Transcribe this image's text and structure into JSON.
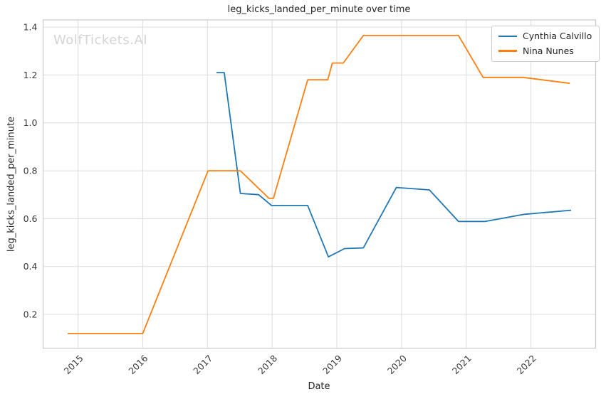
{
  "watermark": "WolfTickets.AI",
  "chart_data": {
    "type": "line",
    "title": "leg_kicks_landed_per_minute over time",
    "xlabel": "Date",
    "ylabel": "leg_kicks_landed_per_minute",
    "xlim": [
      2014.46,
      2023.0
    ],
    "ylim": [
      0.059,
      1.43
    ],
    "x_ticks": [
      2015,
      2016,
      2017,
      2018,
      2019,
      2020,
      2021,
      2022
    ],
    "y_ticks": [
      0.2,
      0.4,
      0.6,
      0.8,
      1.0,
      1.2,
      1.4
    ],
    "grid": true,
    "grid_color": "#dcdcdc",
    "spine_color": "#c9c9c9",
    "legend_position": "upper right",
    "series": [
      {
        "name": "Cynthia Calvillo",
        "color": "#1f77b4",
        "points": [
          [
            2017.14,
            1.21
          ],
          [
            2017.26,
            1.21
          ],
          [
            2017.51,
            0.705
          ],
          [
            2017.79,
            0.7
          ],
          [
            2017.99,
            0.655
          ],
          [
            2018.55,
            0.655
          ],
          [
            2018.87,
            0.44
          ],
          [
            2019.12,
            0.475
          ],
          [
            2019.41,
            0.478
          ],
          [
            2019.92,
            0.73
          ],
          [
            2020.43,
            0.72
          ],
          [
            2020.88,
            0.588
          ],
          [
            2021.29,
            0.588
          ],
          [
            2021.9,
            0.618
          ],
          [
            2022.62,
            0.635
          ]
        ]
      },
      {
        "name": "Nina Nunes",
        "color": "#ff7f0e",
        "points": [
          [
            2014.84,
            0.12
          ],
          [
            2016.0,
            0.12
          ],
          [
            2017.01,
            0.8
          ],
          [
            2017.51,
            0.8
          ],
          [
            2017.95,
            0.685
          ],
          [
            2018.02,
            0.685
          ],
          [
            2018.55,
            1.18
          ],
          [
            2018.86,
            1.18
          ],
          [
            2018.93,
            1.25
          ],
          [
            2019.1,
            1.25
          ],
          [
            2019.41,
            1.365
          ],
          [
            2020.88,
            1.365
          ],
          [
            2021.26,
            1.19
          ],
          [
            2021.88,
            1.19
          ],
          [
            2022.6,
            1.165
          ]
        ]
      }
    ]
  }
}
